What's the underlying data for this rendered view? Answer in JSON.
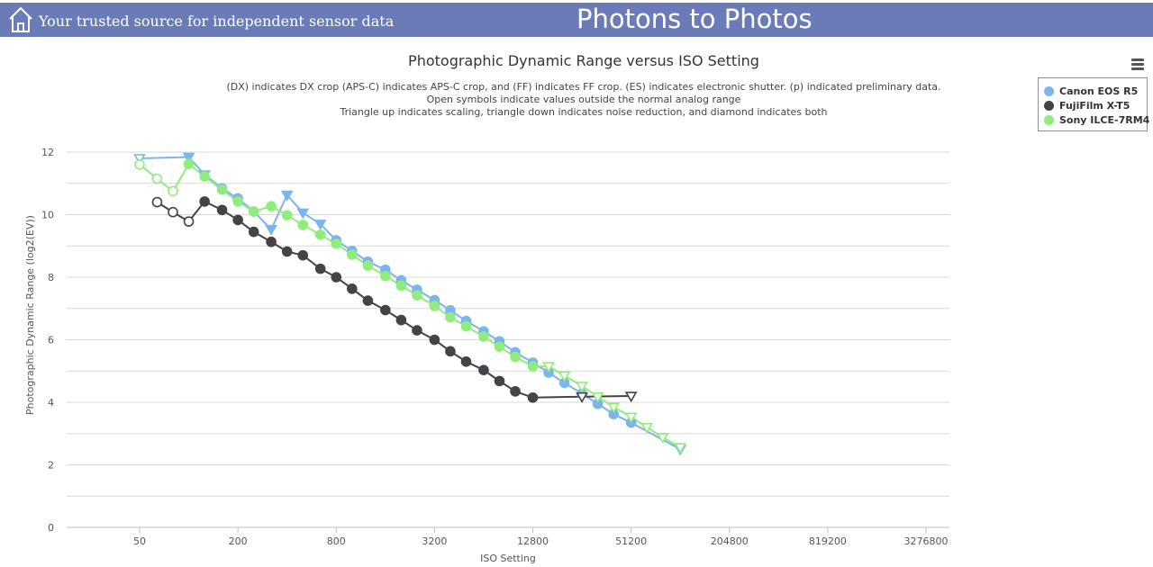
{
  "header": {
    "tagline": "Your trusted source for independent sensor data",
    "site_title": "Photons to Photos",
    "background_color": "#6b7bb8",
    "home_icon": "home-icon"
  },
  "menu_icon": "hamburger-menu-icon",
  "chart_data": {
    "type": "line",
    "title": "Photographic Dynamic Range versus ISO Setting",
    "subtitle": [
      "(DX) indicates DX crop (APS-C) indicates APS-C crop, and (FF) indicates FF crop. (ES) indicates electronic shutter. (p) indicated preliminary data.",
      "Open symbols indicate values outside the normal analog range",
      "Triangle up indicates scaling, triangle down indicates noise reduction, and diamond indicates both"
    ],
    "xlabel": "ISO Setting",
    "ylabel": "Photographic Dynamic Range (log2(EV))",
    "x_scale": "log2",
    "xlim": [
      25,
      5000000
    ],
    "x_ticks": [
      50,
      200,
      800,
      3200,
      12800,
      51200,
      204800,
      819200,
      3276800
    ],
    "x_tick_labels": [
      "50",
      "200",
      "800",
      "3200",
      "12800",
      "51200",
      "204800",
      "819200",
      "3276800"
    ],
    "ylim": [
      0,
      12
    ],
    "y_ticks": [
      0,
      2,
      4,
      6,
      8,
      10,
      12
    ],
    "y_tick_labels": [
      "0",
      "2",
      "4",
      "6",
      "8",
      "10",
      "12"
    ],
    "grid": true,
    "legend_position": "top-right",
    "series": [
      {
        "name": "Canon EOS R5",
        "color": "#7cb5ec",
        "points": [
          {
            "x": 50,
            "y": 11.8,
            "marker": "open-triangle-down"
          },
          {
            "x": 100,
            "y": 11.84,
            "marker": "filled-triangle-down"
          },
          {
            "x": 125,
            "y": 11.28,
            "marker": "filled-triangle-down"
          },
          {
            "x": 160,
            "y": 10.84,
            "marker": "filled-circle"
          },
          {
            "x": 200,
            "y": 10.52,
            "marker": "filled-circle"
          },
          {
            "x": 250,
            "y": 10.1,
            "marker": "filled-circle"
          },
          {
            "x": 320,
            "y": 9.53,
            "marker": "filled-triangle-down"
          },
          {
            "x": 400,
            "y": 10.63,
            "marker": "filled-triangle-down"
          },
          {
            "x": 500,
            "y": 10.06,
            "marker": "filled-triangle-down"
          },
          {
            "x": 640,
            "y": 9.7,
            "marker": "filled-triangle-down"
          },
          {
            "x": 800,
            "y": 9.18,
            "marker": "filled-circle"
          },
          {
            "x": 1000,
            "y": 8.84,
            "marker": "filled-circle"
          },
          {
            "x": 1250,
            "y": 8.5,
            "marker": "filled-circle"
          },
          {
            "x": 1600,
            "y": 8.24,
            "marker": "filled-circle"
          },
          {
            "x": 2000,
            "y": 7.9,
            "marker": "filled-circle"
          },
          {
            "x": 2500,
            "y": 7.6,
            "marker": "filled-circle"
          },
          {
            "x": 3200,
            "y": 7.27,
            "marker": "filled-circle"
          },
          {
            "x": 4000,
            "y": 6.94,
            "marker": "filled-circle"
          },
          {
            "x": 5000,
            "y": 6.6,
            "marker": "filled-circle"
          },
          {
            "x": 6400,
            "y": 6.27,
            "marker": "filled-circle"
          },
          {
            "x": 8000,
            "y": 5.95,
            "marker": "filled-circle"
          },
          {
            "x": 10000,
            "y": 5.6,
            "marker": "filled-circle"
          },
          {
            "x": 12800,
            "y": 5.27,
            "marker": "filled-circle"
          },
          {
            "x": 16000,
            "y": 4.95,
            "marker": "filled-circle"
          },
          {
            "x": 20000,
            "y": 4.62,
            "marker": "filled-circle"
          },
          {
            "x": 25600,
            "y": 4.28,
            "marker": "filled-circle"
          },
          {
            "x": 32000,
            "y": 3.95,
            "marker": "filled-circle"
          },
          {
            "x": 40000,
            "y": 3.62,
            "marker": "filled-circle"
          },
          {
            "x": 51200,
            "y": 3.35,
            "marker": "filled-circle"
          },
          {
            "x": 102400,
            "y": 2.5,
            "marker": "open-triangle-down"
          }
        ]
      },
      {
        "name": "FujiFilm X-T5",
        "color": "#434348",
        "points": [
          {
            "x": 64,
            "y": 10.4,
            "marker": "open-circle"
          },
          {
            "x": 80,
            "y": 10.08,
            "marker": "open-circle"
          },
          {
            "x": 100,
            "y": 9.78,
            "marker": "open-circle"
          },
          {
            "x": 125,
            "y": 10.42,
            "marker": "filled-circle"
          },
          {
            "x": 160,
            "y": 10.15,
            "marker": "filled-circle"
          },
          {
            "x": 200,
            "y": 9.83,
            "marker": "filled-circle"
          },
          {
            "x": 250,
            "y": 9.45,
            "marker": "filled-circle"
          },
          {
            "x": 320,
            "y": 9.13,
            "marker": "filled-circle"
          },
          {
            "x": 400,
            "y": 8.82,
            "marker": "filled-circle"
          },
          {
            "x": 500,
            "y": 8.7,
            "marker": "filled-circle"
          },
          {
            "x": 640,
            "y": 8.27,
            "marker": "filled-circle"
          },
          {
            "x": 800,
            "y": 8.0,
            "marker": "filled-circle"
          },
          {
            "x": 1000,
            "y": 7.63,
            "marker": "filled-circle"
          },
          {
            "x": 1250,
            "y": 7.25,
            "marker": "filled-circle"
          },
          {
            "x": 1600,
            "y": 6.95,
            "marker": "filled-circle"
          },
          {
            "x": 2000,
            "y": 6.63,
            "marker": "filled-circle"
          },
          {
            "x": 2500,
            "y": 6.3,
            "marker": "filled-circle"
          },
          {
            "x": 3200,
            "y": 6.0,
            "marker": "filled-circle"
          },
          {
            "x": 4000,
            "y": 5.63,
            "marker": "filled-circle"
          },
          {
            "x": 5000,
            "y": 5.3,
            "marker": "filled-circle"
          },
          {
            "x": 6400,
            "y": 5.03,
            "marker": "filled-circle"
          },
          {
            "x": 8000,
            "y": 4.68,
            "marker": "filled-circle"
          },
          {
            "x": 10000,
            "y": 4.35,
            "marker": "filled-circle"
          },
          {
            "x": 12800,
            "y": 4.15,
            "marker": "filled-circle"
          },
          {
            "x": 25600,
            "y": 4.18,
            "marker": "open-triangle-down"
          },
          {
            "x": 51200,
            "y": 4.2,
            "marker": "open-triangle-down"
          }
        ]
      },
      {
        "name": "Sony ILCE-7RM4",
        "color": "#90ed7d",
        "points": [
          {
            "x": 50,
            "y": 11.6,
            "marker": "open-circle"
          },
          {
            "x": 64,
            "y": 11.15,
            "marker": "open-circle"
          },
          {
            "x": 80,
            "y": 10.75,
            "marker": "open-circle"
          },
          {
            "x": 100,
            "y": 11.62,
            "marker": "filled-circle"
          },
          {
            "x": 125,
            "y": 11.22,
            "marker": "filled-circle"
          },
          {
            "x": 160,
            "y": 10.8,
            "marker": "filled-circle"
          },
          {
            "x": 200,
            "y": 10.42,
            "marker": "filled-circle"
          },
          {
            "x": 250,
            "y": 10.1,
            "marker": "filled-circle"
          },
          {
            "x": 320,
            "y": 10.27,
            "marker": "filled-circle"
          },
          {
            "x": 400,
            "y": 9.98,
            "marker": "filled-circle"
          },
          {
            "x": 500,
            "y": 9.67,
            "marker": "filled-circle"
          },
          {
            "x": 640,
            "y": 9.36,
            "marker": "filled-circle"
          },
          {
            "x": 800,
            "y": 9.07,
            "marker": "filled-circle"
          },
          {
            "x": 1000,
            "y": 8.72,
            "marker": "filled-circle"
          },
          {
            "x": 1250,
            "y": 8.37,
            "marker": "filled-circle"
          },
          {
            "x": 1600,
            "y": 8.04,
            "marker": "filled-circle"
          },
          {
            "x": 2000,
            "y": 7.73,
            "marker": "filled-circle"
          },
          {
            "x": 2500,
            "y": 7.42,
            "marker": "filled-circle"
          },
          {
            "x": 3200,
            "y": 7.08,
            "marker": "filled-circle"
          },
          {
            "x": 4000,
            "y": 6.72,
            "marker": "filled-circle"
          },
          {
            "x": 5000,
            "y": 6.43,
            "marker": "filled-circle"
          },
          {
            "x": 6400,
            "y": 6.1,
            "marker": "filled-circle"
          },
          {
            "x": 8000,
            "y": 5.78,
            "marker": "filled-circle"
          },
          {
            "x": 10000,
            "y": 5.45,
            "marker": "filled-circle"
          },
          {
            "x": 12800,
            "y": 5.15,
            "marker": "filled-circle"
          },
          {
            "x": 16000,
            "y": 5.15,
            "marker": "open-triangle-down"
          },
          {
            "x": 20000,
            "y": 4.85,
            "marker": "open-triangle-down"
          },
          {
            "x": 25600,
            "y": 4.52,
            "marker": "open-triangle-down"
          },
          {
            "x": 32000,
            "y": 4.18,
            "marker": "open-triangle-down"
          },
          {
            "x": 40000,
            "y": 3.85,
            "marker": "open-triangle-down"
          },
          {
            "x": 51200,
            "y": 3.53,
            "marker": "open-triangle-down"
          },
          {
            "x": 64000,
            "y": 3.2,
            "marker": "open-triangle-down"
          },
          {
            "x": 80000,
            "y": 2.88,
            "marker": "open-triangle-down"
          },
          {
            "x": 102400,
            "y": 2.56,
            "marker": "open-triangle-down"
          }
        ]
      }
    ]
  }
}
